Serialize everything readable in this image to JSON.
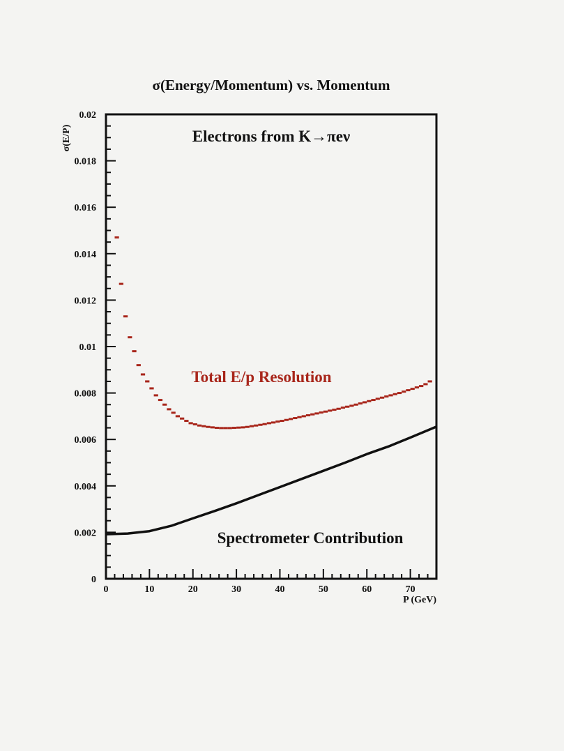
{
  "chart_data": {
    "type": "line",
    "title": "σ(Energy/Momentum)  vs. Momentum",
    "xlabel": "P (GeV)",
    "ylabel": "σ(E/P)",
    "xlim": [
      0,
      76
    ],
    "ylim": [
      0,
      0.02
    ],
    "x_ticks": [
      "0",
      "10",
      "20",
      "30",
      "40",
      "50",
      "60",
      "70"
    ],
    "x_tick_values": [
      0,
      10,
      20,
      30,
      40,
      50,
      60,
      70
    ],
    "y_ticks": [
      "0",
      "0.002",
      "0.004",
      "0.006",
      "0.008",
      "0.01",
      "0.012",
      "0.014",
      "0.016",
      "0.018",
      "0.02"
    ],
    "y_tick_values": [
      0,
      0.002,
      0.004,
      0.006,
      0.008,
      0.01,
      0.012,
      0.014,
      0.016,
      0.018,
      0.02
    ],
    "annotations": [
      {
        "text": "Electrons from K→πeν",
        "color": "#111111"
      },
      {
        "text": "Total E/p Resolution",
        "color": "#a8261b"
      },
      {
        "text": "Spectrometer Contribution",
        "color": "#111111"
      }
    ],
    "series": [
      {
        "color": "#a8261b",
        "style": "step",
        "x": [
          2.5,
          3.5,
          4.5,
          5.5,
          6.5,
          7.5,
          8.5,
          9.5,
          10.5,
          11.5,
          12.5,
          13.5,
          14.5,
          15.5,
          16.5,
          17.5,
          18.5,
          19.5,
          20.5,
          21.5,
          22.5,
          23.5,
          24.5,
          25.5,
          26.5,
          27.5,
          28.5,
          29.5,
          30.5,
          31.5,
          32.5,
          33.5,
          34.5,
          35.5,
          36.5,
          37.5,
          38.5,
          39.5,
          40.5,
          41.5,
          42.5,
          43.5,
          44.5,
          45.5,
          46.5,
          47.5,
          48.5,
          49.5,
          50.5,
          51.5,
          52.5,
          53.5,
          54.5,
          55.5,
          56.5,
          57.5,
          58.5,
          59.5,
          60.5,
          61.5,
          62.5,
          63.5,
          64.5,
          65.5,
          66.5,
          67.5,
          68.5,
          69.5,
          70.5,
          71.5,
          72.5,
          73.5,
          74.5
        ],
        "y": [
          0.0147,
          0.0127,
          0.0113,
          0.0104,
          0.0098,
          0.0092,
          0.0088,
          0.0085,
          0.0082,
          0.0079,
          0.0077,
          0.0075,
          0.0073,
          0.00715,
          0.007,
          0.0069,
          0.0068,
          0.0067,
          0.00665,
          0.0066,
          0.00657,
          0.00654,
          0.00652,
          0.0065,
          0.00649,
          0.00649,
          0.00649,
          0.0065,
          0.00651,
          0.00652,
          0.00654,
          0.00657,
          0.0066,
          0.00663,
          0.00666,
          0.0067,
          0.00673,
          0.00677,
          0.0068,
          0.00684,
          0.00688,
          0.00692,
          0.00696,
          0.007,
          0.00704,
          0.00708,
          0.00712,
          0.00716,
          0.0072,
          0.00724,
          0.00728,
          0.00732,
          0.00737,
          0.00741,
          0.00745,
          0.0075,
          0.00755,
          0.0076,
          0.00765,
          0.0077,
          0.00775,
          0.0078,
          0.00785,
          0.0079,
          0.00795,
          0.008,
          0.00806,
          0.00812,
          0.00818,
          0.00824,
          0.0083,
          0.00838,
          0.0085
        ]
      },
      {
        "color": "#111111",
        "style": "line",
        "x": [
          0,
          5,
          10,
          15,
          20,
          25,
          30,
          35,
          40,
          45,
          50,
          55,
          60,
          65,
          70,
          76
        ],
        "y": [
          0.00192,
          0.00195,
          0.00205,
          0.00228,
          0.0026,
          0.00292,
          0.00325,
          0.0036,
          0.00395,
          0.0043,
          0.00465,
          0.005,
          0.00537,
          0.0057,
          0.00608,
          0.00655
        ]
      }
    ]
  }
}
